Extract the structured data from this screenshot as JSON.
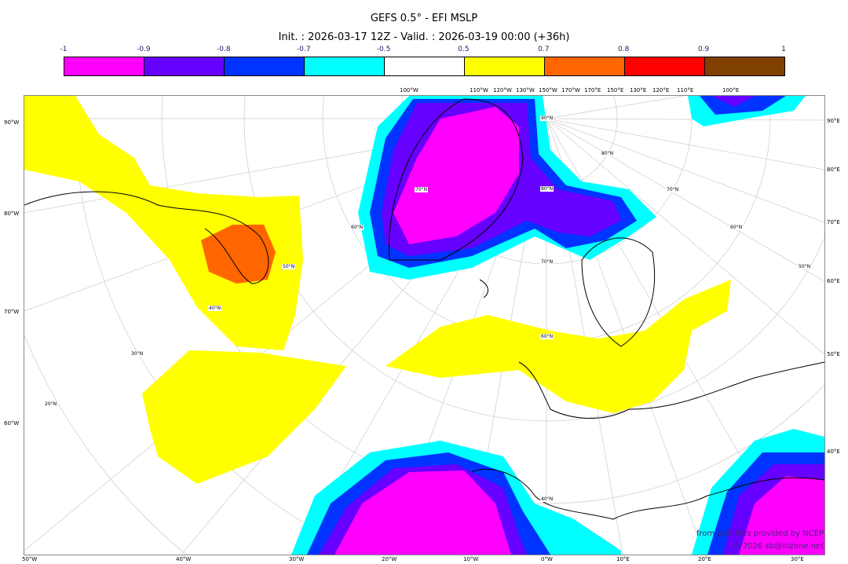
{
  "title": "GEFS 0.5° - EFI MSLP",
  "subtitle": "Init. : 2026-03-17 12Z - Valid. : 2026-03-19 00:00 (+36h)",
  "colorbar": {
    "ticks": [
      "-1",
      "-0.9",
      "-0.8",
      "-0.7",
      "-0.5",
      "0.5",
      "0.7",
      "0.8",
      "0.9",
      "1"
    ],
    "colors": [
      "#ff00ff",
      "#6600ff",
      "#0033ff",
      "#00ffff",
      "#ffffff",
      "#ffff00",
      "#ff6600",
      "#ff0000",
      "#804000"
    ]
  },
  "axes": {
    "top": [
      "100°W",
      "110°W",
      "120°W",
      "130°W",
      "150°W",
      "170°W",
      "170°E",
      "150°E",
      "130°E",
      "120°E",
      "110°E",
      "100°E"
    ],
    "left": [
      "90°W",
      "80°W",
      "70°W",
      "60°W"
    ],
    "right": [
      "90°E",
      "80°E",
      "70°E",
      "60°E",
      "50°E",
      "40°E"
    ],
    "bottom": [
      "50°W",
      "40°W",
      "30°W",
      "20°W",
      "10°W",
      "0°W",
      "10°E",
      "20°E",
      "30°E"
    ],
    "lat_labels": [
      "90°N",
      "80°N",
      "80°N",
      "70°N",
      "70°N",
      "70°N",
      "60°N",
      "60°N",
      "60°N",
      "50°N",
      "50°N",
      "40°N",
      "40°N",
      "30°N",
      "20°N"
    ]
  },
  "credits": {
    "line1": "from grib files provided by NCEP",
    "line2": "© 2026 sb@irizone.net"
  }
}
